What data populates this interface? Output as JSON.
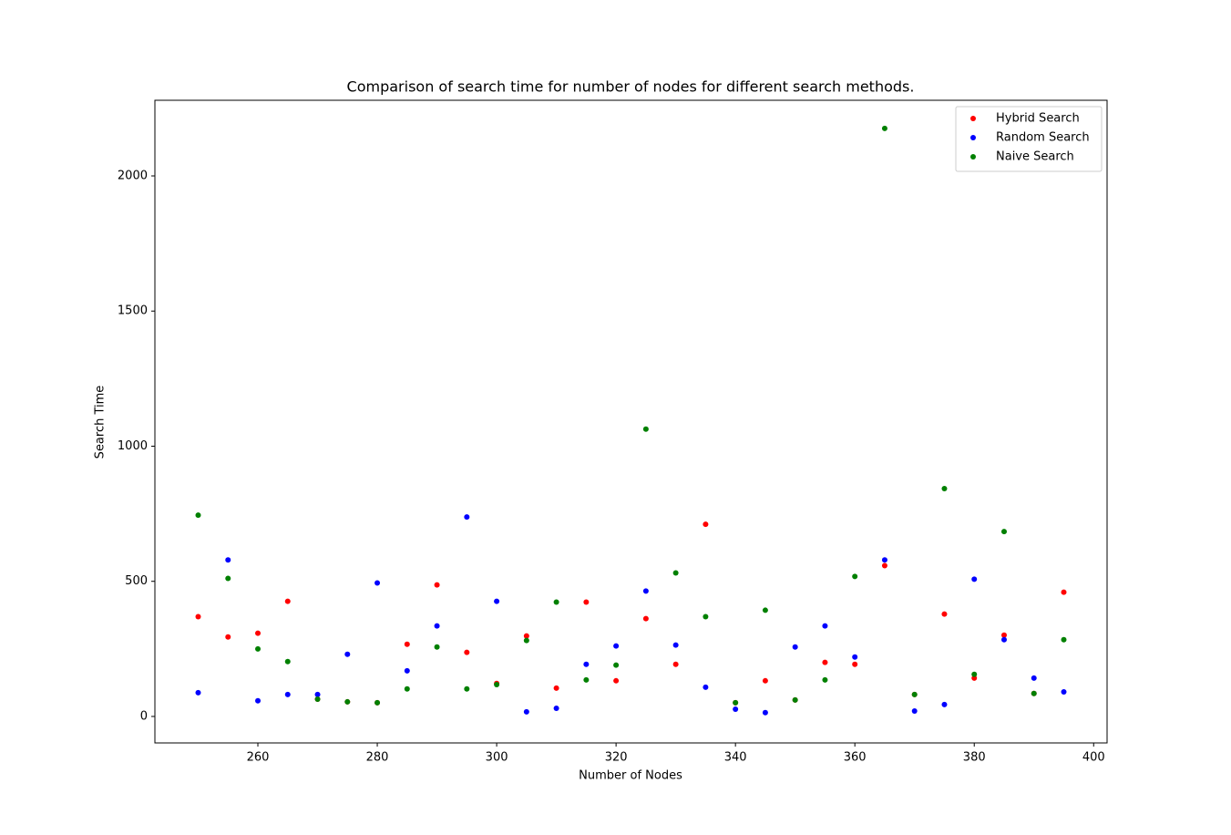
{
  "chart_data": {
    "type": "scatter",
    "title": "Comparison of search time for number of nodes for different search methods.",
    "x_label": "Number of Nodes",
    "y_label": "Search Time",
    "x": [
      250,
      255,
      260,
      265,
      270,
      275,
      280,
      285,
      290,
      295,
      300,
      305,
      310,
      315,
      320,
      325,
      330,
      335,
      340,
      345,
      350,
      355,
      360,
      365,
      370,
      375,
      380,
      385,
      390,
      395
    ],
    "series": [
      {
        "name": "Hybrid Search",
        "color": "#ff0000",
        "values": [
          369,
          294,
          308,
          426,
          64,
          54,
          51,
          267,
          487,
          237,
          122,
          298,
          105,
          423,
          132,
          362,
          193,
          711,
          51,
          132,
          61,
          200,
          193,
          558,
          81,
          379,
          142,
          301,
          85,
          460
        ]
      },
      {
        "name": "Random Search",
        "color": "#0000ff",
        "values": [
          88,
          579,
          58,
          81,
          81,
          230,
          494,
          169,
          335,
          738,
          426,
          17,
          30,
          193,
          261,
          464,
          264,
          108,
          27,
          14,
          257,
          335,
          220,
          579,
          20,
          44,
          508,
          284,
          142,
          91
        ]
      },
      {
        "name": "Naive Search",
        "color": "#008000",
        "values": [
          745,
          511,
          250,
          203,
          64,
          54,
          51,
          102,
          257,
          102,
          118,
          281,
          423,
          135,
          190,
          1063,
          531,
          369,
          51,
          393,
          61,
          135,
          518,
          2176,
          81,
          843,
          156,
          684,
          85,
          284
        ]
      }
    ],
    "xlim": [
      242.75,
      402.25
    ],
    "xticks": [
      260,
      280,
      300,
      320,
      340,
      360,
      380,
      400
    ],
    "ylim": [
      -98,
      2280
    ],
    "yticks": [
      0,
      500,
      1000,
      1500,
      2000
    ],
    "grid": false,
    "legend": "upper right"
  }
}
